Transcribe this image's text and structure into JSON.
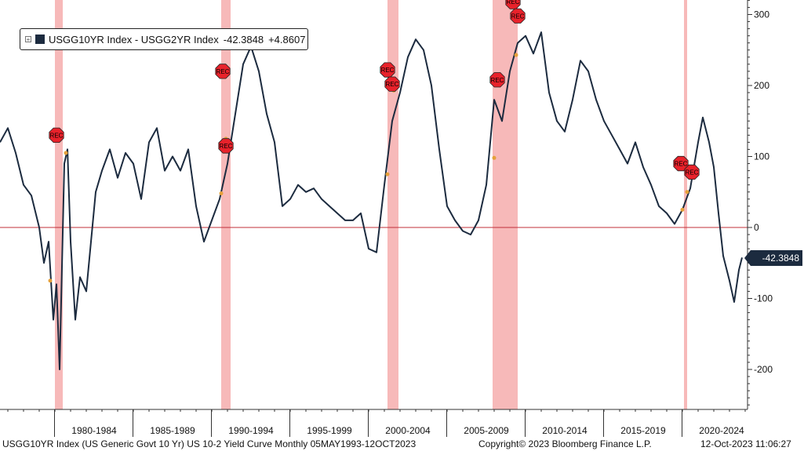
{
  "chart_data": {
    "type": "line",
    "series": [
      {
        "name": "USGG10YR Index - USGG2YR Index",
        "color": "#1c2b3f",
        "points": [
          [
            1976.5,
            120
          ],
          [
            1977.0,
            140
          ],
          [
            1977.5,
            105
          ],
          [
            1978.0,
            60
          ],
          [
            1978.5,
            45
          ],
          [
            1979.0,
            0
          ],
          [
            1979.3,
            -50
          ],
          [
            1979.6,
            -20
          ],
          [
            1979.9,
            -130
          ],
          [
            1980.1,
            -80
          ],
          [
            1980.3,
            -200
          ],
          [
            1980.6,
            90
          ],
          [
            1980.8,
            110
          ],
          [
            1981.0,
            -20
          ],
          [
            1981.3,
            -130
          ],
          [
            1981.6,
            -70
          ],
          [
            1982.0,
            -90
          ],
          [
            1982.3,
            -20
          ],
          [
            1982.6,
            50
          ],
          [
            1983.0,
            80
          ],
          [
            1983.5,
            110
          ],
          [
            1984.0,
            70
          ],
          [
            1984.5,
            105
          ],
          [
            1985.0,
            90
          ],
          [
            1985.5,
            40
          ],
          [
            1986.0,
            120
          ],
          [
            1986.5,
            140
          ],
          [
            1987.0,
            80
          ],
          [
            1987.5,
            100
          ],
          [
            1988.0,
            80
          ],
          [
            1988.5,
            110
          ],
          [
            1989.0,
            30
          ],
          [
            1989.5,
            -20
          ],
          [
            1990.0,
            10
          ],
          [
            1990.5,
            40
          ],
          [
            1991.0,
            90
          ],
          [
            1991.5,
            160
          ],
          [
            1992.0,
            230
          ],
          [
            1992.5,
            255
          ],
          [
            1993.0,
            220
          ],
          [
            1993.5,
            160
          ],
          [
            1994.0,
            120
          ],
          [
            1994.5,
            30
          ],
          [
            1995.0,
            40
          ],
          [
            1995.5,
            60
          ],
          [
            1996.0,
            50
          ],
          [
            1996.5,
            55
          ],
          [
            1997.0,
            40
          ],
          [
            1997.5,
            30
          ],
          [
            1998.0,
            20
          ],
          [
            1998.5,
            10
          ],
          [
            1999.0,
            10
          ],
          [
            1999.5,
            20
          ],
          [
            2000.0,
            -30
          ],
          [
            2000.5,
            -35
          ],
          [
            2001.0,
            60
          ],
          [
            2001.5,
            150
          ],
          [
            2002.0,
            190
          ],
          [
            2002.5,
            240
          ],
          [
            2003.0,
            265
          ],
          [
            2003.5,
            250
          ],
          [
            2004.0,
            200
          ],
          [
            2004.5,
            110
          ],
          [
            2005.0,
            30
          ],
          [
            2005.5,
            10
          ],
          [
            2006.0,
            -5
          ],
          [
            2006.5,
            -10
          ],
          [
            2007.0,
            10
          ],
          [
            2007.5,
            60
          ],
          [
            2008.0,
            180
          ],
          [
            2008.5,
            150
          ],
          [
            2009.0,
            220
          ],
          [
            2009.5,
            260
          ],
          [
            2010.0,
            270
          ],
          [
            2010.5,
            245
          ],
          [
            2011.0,
            275
          ],
          [
            2011.5,
            190
          ],
          [
            2012.0,
            150
          ],
          [
            2012.5,
            135
          ],
          [
            2013.0,
            180
          ],
          [
            2013.5,
            235
          ],
          [
            2014.0,
            220
          ],
          [
            2014.5,
            180
          ],
          [
            2015.0,
            150
          ],
          [
            2015.5,
            130
          ],
          [
            2016.0,
            110
          ],
          [
            2016.5,
            90
          ],
          [
            2017.0,
            120
          ],
          [
            2017.5,
            85
          ],
          [
            2018.0,
            60
          ],
          [
            2018.5,
            30
          ],
          [
            2019.0,
            20
          ],
          [
            2019.5,
            5
          ],
          [
            2020.0,
            25
          ],
          [
            2020.5,
            55
          ],
          [
            2021.0,
            120
          ],
          [
            2021.3,
            155
          ],
          [
            2021.7,
            120
          ],
          [
            2022.0,
            85
          ],
          [
            2022.3,
            20
          ],
          [
            2022.6,
            -40
          ],
          [
            2023.0,
            -75
          ],
          [
            2023.3,
            -105
          ],
          [
            2023.6,
            -60
          ],
          [
            2023.8,
            -42.3848
          ]
        ]
      }
    ],
    "recession_periods": [
      [
        1980.0,
        1980.5
      ],
      [
        1990.6,
        1991.2
      ],
      [
        2001.2,
        2001.9
      ],
      [
        2007.9,
        2009.5
      ],
      [
        2020.1,
        2020.3
      ]
    ],
    "rec_markers": [
      {
        "x": 1980.1,
        "y": 130,
        "label": "REC"
      },
      {
        "x": 1990.7,
        "y": 220,
        "label": "REC"
      },
      {
        "x": 1990.9,
        "y": 115,
        "label": "REC"
      },
      {
        "x": 2001.2,
        "y": 222,
        "label": "REC"
      },
      {
        "x": 2001.5,
        "y": 202,
        "label": "REC"
      },
      {
        "x": 2008.2,
        "y": 208,
        "label": "REC"
      },
      {
        "x": 2009.2,
        "y": 318,
        "label": "REC"
      },
      {
        "x": 2009.5,
        "y": 298,
        "label": "REC"
      },
      {
        "x": 2019.9,
        "y": 90,
        "label": "REC"
      },
      {
        "x": 2020.6,
        "y": 78,
        "label": "REC"
      }
    ],
    "event_points": [
      [
        1979.7,
        -75
      ],
      [
        1980.7,
        105
      ],
      [
        1990.6,
        48
      ],
      [
        1990.9,
        125
      ],
      [
        2001.2,
        75
      ],
      [
        2001.6,
        193
      ],
      [
        2008.0,
        98
      ],
      [
        2009.4,
        243
      ],
      [
        2020.0,
        25
      ],
      [
        2020.3,
        50
      ]
    ],
    "xlim": [
      1976.5,
      2025.3
    ],
    "ylim": [
      -255,
      320
    ],
    "y_ticks": [
      300,
      200,
      100,
      0,
      -100,
      -200
    ],
    "x_ticks": [
      1980,
      1985,
      1990,
      1995,
      2000,
      2005,
      2010,
      2015,
      2020,
      2025
    ],
    "x_tick_labels": [
      "1980-1984",
      "1985-1989",
      "1990-1994",
      "1995-1999",
      "2000-2004",
      "2005-2009",
      "2010-2014",
      "2015-2019",
      "2020-2024"
    ],
    "zero_line_color": "#c0303a",
    "recession_color": "#f7b9b9",
    "legend": {
      "label": "USGG10YR Index - USGG2YR Index",
      "last_value": "-42.3848",
      "change": "+4.8607",
      "swatch_color": "#1c2b3f"
    },
    "last_value_badge": "-42.3848"
  },
  "footer": {
    "description": "USGG10YR Index (US Generic Govt 10 Yr) US 10-2 Yield Curve  Monthly 05MAY1993-12OCT2023",
    "copyright": "Copyright© 2023 Bloomberg Finance L.P.",
    "timestamp": "12-Oct-2023 11:06:27"
  }
}
